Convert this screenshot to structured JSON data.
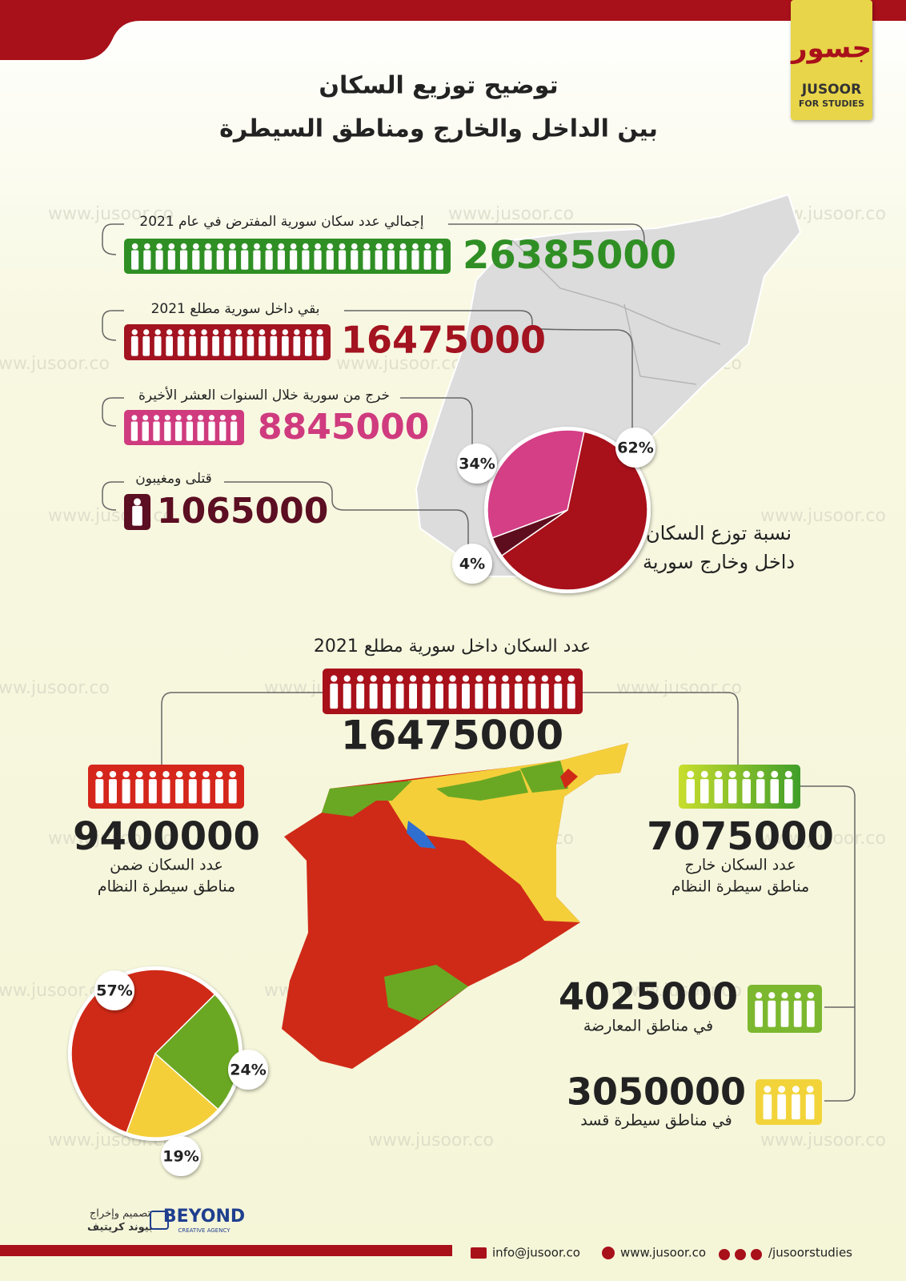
{
  "header": {
    "title_lines": [
      "توضيح توزيع السكان",
      "بين الداخل والخارج ومناطق السيطرة"
    ],
    "logo": {
      "mark": "جسور",
      "name": "JUSOOR",
      "tagline": "FOR STUDIES"
    }
  },
  "watermark": "www.jusoor.co",
  "population": {
    "items": [
      {
        "label": "إجمالي عدد سكان سورية المفترض في عام 2021",
        "value": 26385000,
        "color": "#2f8f24"
      },
      {
        "label": "بقي داخل سورية مطلع 2021",
        "value": 16475000,
        "color": "#a31320"
      },
      {
        "label": "خرج من سورية خلال السنوات العشر الأخيرة",
        "value": 8845000,
        "color": "#cf3b7e"
      },
      {
        "label": "قتلى ومغيبون",
        "value": 1065000,
        "color": "#5c0e22"
      }
    ],
    "pie": {
      "type": "pie",
      "title_lines": [
        "نسبة توزع السكان",
        "داخل وخارج سورية"
      ],
      "values": [
        62,
        4,
        34
      ],
      "value_labels": [
        "62%",
        "4%",
        "34%"
      ],
      "colors": [
        "#a8101a",
        "#5e0d1e",
        "#d43f86"
      ]
    }
  },
  "control": {
    "title": "عدد السكان داخل سورية مطلع 2021",
    "total": 16475000,
    "regime": {
      "value": 9400000,
      "label_lines": [
        "عدد السكان ضمن",
        "مناطق سيطرة النظام"
      ]
    },
    "outside": {
      "value": 7075000,
      "label_lines": [
        "عدد السكان خارج",
        "مناطق سيطرة النظام"
      ]
    },
    "opposition": {
      "value": 4025000,
      "label": "في مناطق المعارضة"
    },
    "sdf": {
      "value": 3050000,
      "label": "في مناطق سيطرة قسد"
    },
    "pie": {
      "type": "pie",
      "values": [
        57,
        24,
        19
      ],
      "value_labels": [
        "57%",
        "24%",
        "19%"
      ],
      "colors": [
        "#cf2a17",
        "#6aa823",
        "#f4cf3a"
      ]
    }
  },
  "footer": {
    "credit_lines": [
      "تصميم وإخراج",
      "بيوند كريتيف"
    ],
    "agency": "BEYOND",
    "agency_tagline": "CREATIVE AGENCY",
    "email": "info@jusoor.co",
    "website": "www.jusoor.co",
    "social": "/jusoorstudies"
  }
}
